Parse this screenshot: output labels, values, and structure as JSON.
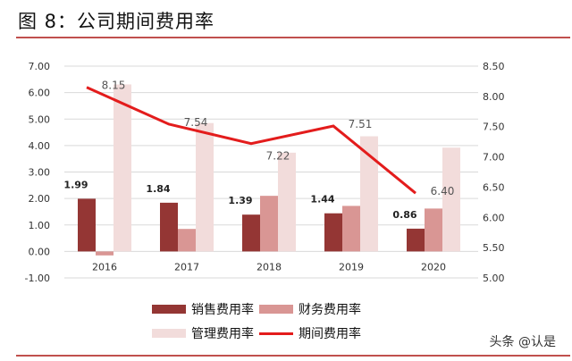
{
  "title": "图 8：公司期间费用率",
  "watermark": "头条 @认是",
  "chart_data": {
    "type": "bar",
    "categories": [
      "2016",
      "2017",
      "2018",
      "2019",
      "2020"
    ],
    "series": [
      {
        "name": "销售费用率",
        "type": "bar",
        "axis": "left",
        "color": "#943634",
        "values": [
          1.99,
          1.84,
          1.39,
          1.44,
          0.86
        ],
        "labels": [
          "1.99",
          "1.84",
          "1.39",
          "1.44",
          "0.86"
        ]
      },
      {
        "name": "财务费用率",
        "type": "bar",
        "axis": "left",
        "color": "#d99694",
        "values": [
          -0.15,
          0.85,
          2.1,
          1.72,
          1.62
        ]
      },
      {
        "name": "管理费用率",
        "type": "bar",
        "axis": "left",
        "color": "#f2dcdb",
        "values": [
          6.31,
          4.85,
          3.73,
          4.35,
          3.92
        ]
      },
      {
        "name": "期间费用率",
        "type": "line",
        "axis": "right",
        "color": "#e31c1c",
        "values": [
          8.15,
          7.54,
          7.22,
          7.51,
          6.4
        ],
        "labels": [
          "8.15",
          "7.54",
          "7.22",
          "7.51",
          "6.40"
        ]
      }
    ],
    "left_axis": {
      "ylim": [
        -1,
        7
      ],
      "ticks": [
        "-1.00",
        "0.00",
        "1.00",
        "2.00",
        "3.00",
        "4.00",
        "5.00",
        "6.00",
        "7.00"
      ]
    },
    "right_axis": {
      "ylim": [
        5,
        8.5
      ],
      "ticks": [
        "5.00",
        "5.50",
        "6.00",
        "6.50",
        "7.00",
        "7.50",
        "8.00",
        "8.50"
      ]
    },
    "grid": true,
    "legend": "bottom"
  }
}
